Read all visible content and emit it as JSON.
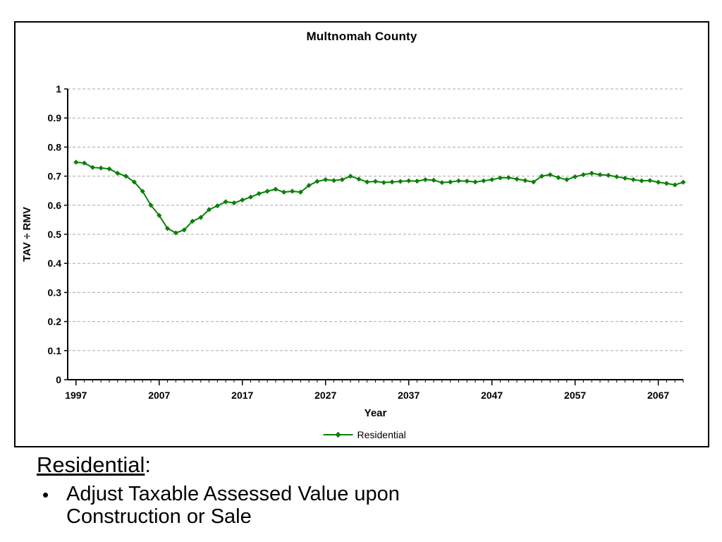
{
  "chart_data": {
    "type": "line",
    "title": "Multnomah County",
    "xlabel": "Year",
    "ylabel": "TAV ÷ RMV",
    "xlim": [
      1996,
      2070
    ],
    "ylim": [
      0,
      1
    ],
    "x_ticks": [
      1997,
      2007,
      2017,
      2027,
      2037,
      2047,
      2057,
      2067
    ],
    "y_ticks": [
      0,
      0.1,
      0.2,
      0.3,
      0.4,
      0.5,
      0.6,
      0.7,
      0.8,
      0.9,
      1
    ],
    "grid": "horizontal-dashed",
    "legend_position": "bottom",
    "colors": {
      "grid": "#a8a8a8",
      "axis": "#000000",
      "series": "#0b8008"
    },
    "series": [
      {
        "name": "Residential",
        "color": "#0b8008",
        "marker": "diamond",
        "x_start": 1997,
        "x_step": 1,
        "values": [
          0.748,
          0.745,
          0.73,
          0.728,
          0.725,
          0.71,
          0.7,
          0.68,
          0.648,
          0.6,
          0.565,
          0.52,
          0.505,
          0.515,
          0.545,
          0.558,
          0.585,
          0.598,
          0.612,
          0.608,
          0.618,
          0.628,
          0.64,
          0.648,
          0.655,
          0.645,
          0.648,
          0.645,
          0.668,
          0.682,
          0.688,
          0.685,
          0.688,
          0.7,
          0.69,
          0.68,
          0.682,
          0.678,
          0.68,
          0.682,
          0.684,
          0.683,
          0.688,
          0.686,
          0.678,
          0.68,
          0.684,
          0.683,
          0.68,
          0.684,
          0.688,
          0.694,
          0.695,
          0.69,
          0.685,
          0.68,
          0.7,
          0.705,
          0.695,
          0.688,
          0.698,
          0.705,
          0.71,
          0.705,
          0.703,
          0.698,
          0.693,
          0.688,
          0.684,
          0.685,
          0.679,
          0.675,
          0.67,
          0.679
        ]
      }
    ]
  },
  "caption": {
    "heading": "Residential",
    "heading_suffix": ":",
    "bullet_marker": "•",
    "bullets": [
      "Adjust Taxable Assessed Value upon Construction or Sale"
    ]
  }
}
